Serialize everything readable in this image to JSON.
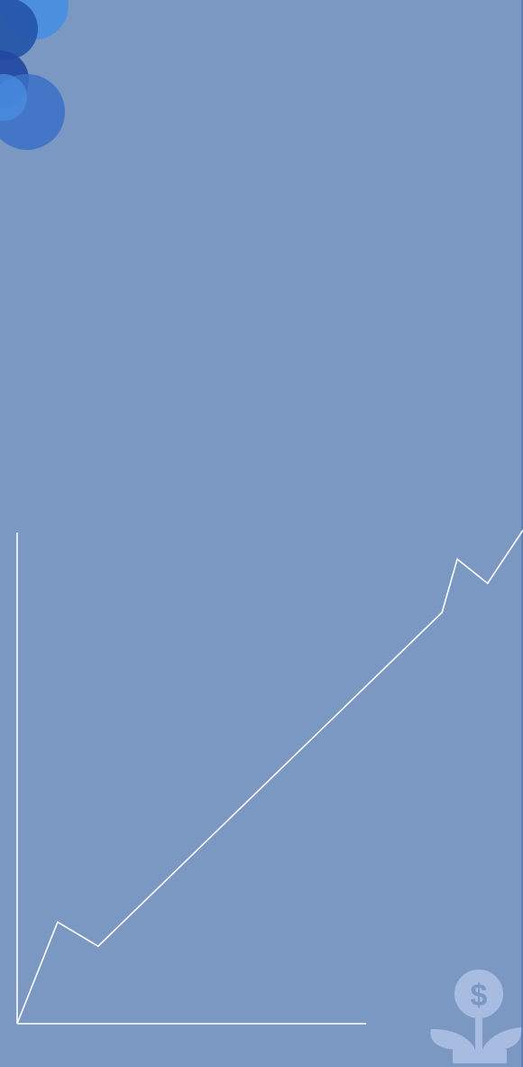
{
  "slide": {
    "background_color": "#7b98c3",
    "edge_color": "#5e7fb0",
    "line_color": "#ffffff"
  },
  "decoration": {
    "bubble_icon": "overlapping-circles",
    "bubble_colors": {
      "light": "#4a8ee0",
      "mid": "#3a70c8",
      "dark": "#2353a8",
      "deep": "#1f47a0",
      "shade": "#3d63b2"
    }
  },
  "growth_graphic": {
    "icon": "rising-zigzag-line",
    "relative_points": [
      {
        "t": 0.0,
        "v": 0.0
      },
      {
        "t": 0.08,
        "v": 0.21
      },
      {
        "t": 0.16,
        "v": 0.16
      },
      {
        "t": 0.84,
        "v": 0.85
      },
      {
        "t": 0.87,
        "v": 0.96
      },
      {
        "t": 0.93,
        "v": 0.91
      },
      {
        "t": 1.0,
        "v": 1.02
      }
    ]
  },
  "money_plant": {
    "icon": "money-plant-icon",
    "glyph": "$",
    "color": "#a7bce0"
  }
}
